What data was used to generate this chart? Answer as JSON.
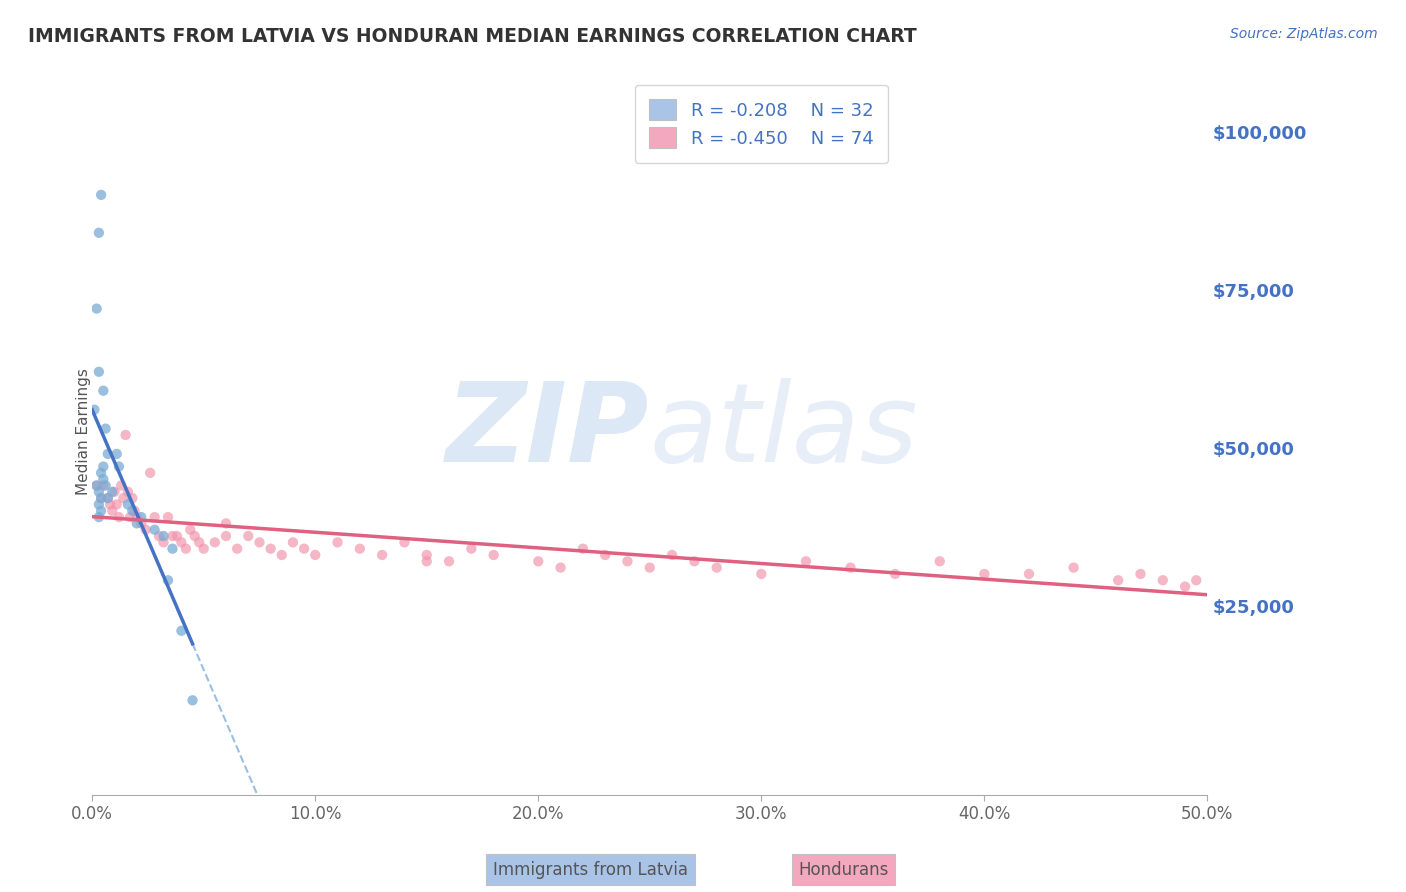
{
  "title": "IMMIGRANTS FROM LATVIA VS HONDURAN MEDIAN EARNINGS CORRELATION CHART",
  "source_text": "Source: ZipAtlas.com",
  "ylabel": "Median Earnings",
  "xlim": [
    0.0,
    0.5
  ],
  "ylim": [
    -5000,
    110000
  ],
  "plot_ylim": [
    -5000,
    110000
  ],
  "yticks": [
    0,
    25000,
    50000,
    75000,
    100000
  ],
  "ytick_labels": [
    "",
    "$25,000",
    "$50,000",
    "$75,000",
    "$100,000"
  ],
  "xticks": [
    0.0,
    0.1,
    0.2,
    0.3,
    0.4,
    0.5
  ],
  "xtick_labels": [
    "0.0%",
    "10.0%",
    "20.0%",
    "30.0%",
    "40.0%",
    "50.0%"
  ],
  "background_color": "#ffffff",
  "grid_color": "#c8c8c8",
  "title_color": "#333333",
  "axis_label_color": "#4472c4",
  "watermark_line1": "ZIP",
  "watermark_line2": "atlas",
  "watermark_color": "#dce8f5",
  "legend_r1": "R = -0.208",
  "legend_n1": "N = 32",
  "legend_r2": "R = -0.450",
  "legend_n2": "N = 74",
  "legend_color1": "#aac4e8",
  "legend_color2": "#f4a8c0",
  "series1_color": "#7aaad4",
  "series2_color": "#f090a8",
  "trendline1_color": "#4472c4",
  "trendline2_color": "#e06080",
  "trendline_dashed_color": "#90b8e0",
  "latvia_x": [
    0.002,
    0.001,
    0.004,
    0.003,
    0.003,
    0.005,
    0.006,
    0.004,
    0.007,
    0.003,
    0.002,
    0.004,
    0.003,
    0.005,
    0.005,
    0.003,
    0.004,
    0.006,
    0.007,
    0.009,
    0.012,
    0.011,
    0.016,
    0.018,
    0.022,
    0.02,
    0.028,
    0.032,
    0.036,
    0.034,
    0.04,
    0.045
  ],
  "latvia_y": [
    72000,
    56000,
    90000,
    84000,
    62000,
    59000,
    53000,
    46000,
    49000,
    43000,
    44000,
    42000,
    41000,
    45000,
    47000,
    39000,
    40000,
    44000,
    42000,
    43000,
    47000,
    49000,
    41000,
    40000,
    39000,
    38000,
    37000,
    36000,
    34000,
    29000,
    21000,
    10000
  ],
  "honduran_x": [
    0.002,
    0.004,
    0.005,
    0.007,
    0.008,
    0.009,
    0.01,
    0.011,
    0.012,
    0.013,
    0.014,
    0.015,
    0.016,
    0.017,
    0.018,
    0.019,
    0.02,
    0.022,
    0.024,
    0.026,
    0.028,
    0.03,
    0.032,
    0.034,
    0.036,
    0.038,
    0.04,
    0.042,
    0.044,
    0.046,
    0.048,
    0.05,
    0.055,
    0.06,
    0.065,
    0.07,
    0.075,
    0.08,
    0.085,
    0.09,
    0.095,
    0.1,
    0.11,
    0.12,
    0.13,
    0.14,
    0.15,
    0.16,
    0.17,
    0.18,
    0.2,
    0.21,
    0.22,
    0.23,
    0.24,
    0.25,
    0.26,
    0.27,
    0.28,
    0.3,
    0.32,
    0.34,
    0.36,
    0.38,
    0.4,
    0.42,
    0.44,
    0.46,
    0.47,
    0.48,
    0.49,
    0.495,
    0.06,
    0.15
  ],
  "honduran_y": [
    44000,
    42000,
    44000,
    42000,
    41000,
    40000,
    43000,
    41000,
    39000,
    44000,
    42000,
    52000,
    43000,
    39000,
    42000,
    40000,
    39000,
    38000,
    37000,
    46000,
    39000,
    36000,
    35000,
    39000,
    36000,
    36000,
    35000,
    34000,
    37000,
    36000,
    35000,
    34000,
    35000,
    36000,
    34000,
    36000,
    35000,
    34000,
    33000,
    35000,
    34000,
    33000,
    35000,
    34000,
    33000,
    35000,
    33000,
    32000,
    34000,
    33000,
    32000,
    31000,
    34000,
    33000,
    32000,
    31000,
    33000,
    32000,
    31000,
    30000,
    32000,
    31000,
    30000,
    32000,
    30000,
    30000,
    31000,
    29000,
    30000,
    29000,
    28000,
    29000,
    38000,
    32000
  ],
  "legend_bottom_label1": "Immigrants from Latvia",
  "legend_bottom_label2": "Hondurans"
}
